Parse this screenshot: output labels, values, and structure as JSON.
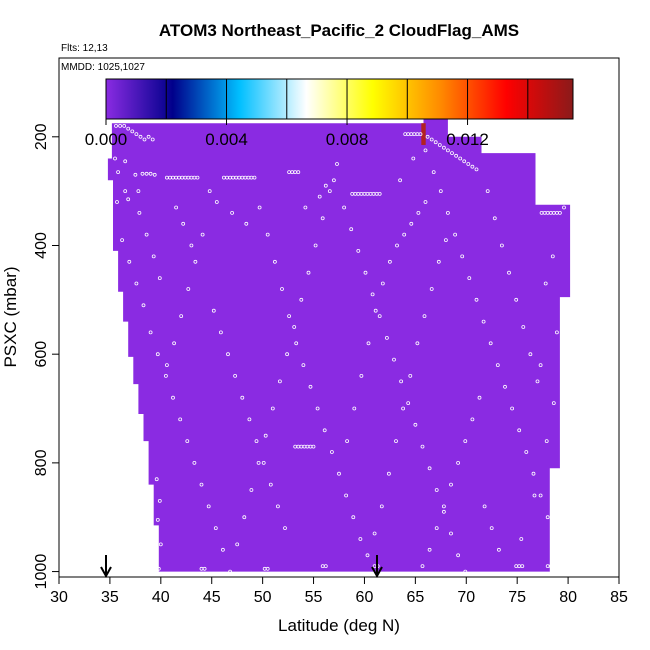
{
  "chart_data": {
    "type": "heatmap",
    "title": "ATOM3 Northeast_Pacific_2 CloudFlag_AMS",
    "info_lines": [
      "Flts: 12,13",
      "MMDD: 1025,1027"
    ],
    "xlabel": "Latitude (deg N)",
    "ylabel": "PSXC (mbar)",
    "xlim": [
      30,
      85
    ],
    "ylim": [
      1010,
      55
    ],
    "x_ticks": [
      30,
      35,
      40,
      45,
      50,
      55,
      60,
      65,
      70,
      75,
      80,
      85
    ],
    "y_ticks": [
      200,
      400,
      600,
      800,
      1000
    ],
    "colorbar": {
      "range": [
        0,
        0.0155
      ],
      "tick_values": [
        0,
        0.004,
        0.008,
        0.012
      ],
      "tick_labels": [
        "0.000",
        "0.004",
        "0.008",
        "0.012"
      ],
      "stops": [
        "#8a2be2",
        "#00008b",
        "#00bfff",
        "#ffffff",
        "#ffff00",
        "#ff8c00",
        "#ff0000",
        "#8b1a1a"
      ]
    },
    "field_color": "#8a2be2",
    "high_value_column": {
      "x": 65.8,
      "p_top": 175,
      "p_bottom": 215,
      "color": "#b22222"
    },
    "curtain": {
      "top_edge": [
        [
          35.2,
          175
        ],
        [
          65.8,
          175
        ],
        [
          65.8,
          160
        ],
        [
          68.2,
          160
        ],
        [
          68.2,
          200
        ],
        [
          71.5,
          200
        ],
        [
          71.5,
          230
        ],
        [
          76.8,
          230
        ],
        [
          76.8,
          325
        ],
        [
          80.2,
          325
        ]
      ],
      "right_edge": [
        [
          80.2,
          325
        ],
        [
          80.2,
          495
        ],
        [
          79.2,
          495
        ],
        [
          79.2,
          810
        ],
        [
          78.2,
          810
        ],
        [
          78.2,
          1000
        ]
      ],
      "left_edge": [
        [
          35.2,
          175
        ],
        [
          35.2,
          240
        ],
        [
          34.8,
          240
        ],
        [
          34.8,
          280
        ],
        [
          35.3,
          280
        ],
        [
          35.3,
          410
        ],
        [
          35.8,
          410
        ],
        [
          35.8,
          485
        ],
        [
          36.3,
          485
        ],
        [
          36.3,
          540
        ],
        [
          36.8,
          540
        ],
        [
          36.8,
          605
        ],
        [
          37.3,
          605
        ],
        [
          37.3,
          655
        ],
        [
          37.8,
          655
        ],
        [
          37.8,
          710
        ],
        [
          38.3,
          710
        ],
        [
          38.3,
          760
        ],
        [
          38.8,
          760
        ],
        [
          38.8,
          840
        ],
        [
          39.3,
          840
        ],
        [
          39.3,
          915
        ],
        [
          39.8,
          915
        ],
        [
          39.8,
          1000
        ]
      ],
      "bottom": 1000
    },
    "sample_points": [
      [
        35.6,
        180
      ],
      [
        36.0,
        180
      ],
      [
        36.4,
        180
      ],
      [
        36.8,
        185
      ],
      [
        37.2,
        190
      ],
      [
        37.6,
        195
      ],
      [
        38.0,
        200
      ],
      [
        38.4,
        205
      ],
      [
        38.8,
        200
      ],
      [
        39.2,
        205
      ],
      [
        35.5,
        240
      ],
      [
        36.5,
        245
      ],
      [
        35.8,
        265
      ],
      [
        37.5,
        270
      ],
      [
        38.2,
        268
      ],
      [
        38.6,
        268
      ],
      [
        39.0,
        268
      ],
      [
        39.4,
        270
      ],
      [
        40.6,
        275
      ],
      [
        40.9,
        275
      ],
      [
        41.2,
        275
      ],
      [
        41.5,
        275
      ],
      [
        41.8,
        275
      ],
      [
        42.1,
        275
      ],
      [
        42.4,
        275
      ],
      [
        42.7,
        275
      ],
      [
        43.0,
        275
      ],
      [
        43.3,
        275
      ],
      [
        43.6,
        275
      ],
      [
        46.2,
        275
      ],
      [
        46.5,
        275
      ],
      [
        46.8,
        275
      ],
      [
        47.1,
        275
      ],
      [
        47.4,
        275
      ],
      [
        47.7,
        275
      ],
      [
        48.0,
        275
      ],
      [
        48.3,
        275
      ],
      [
        48.6,
        275
      ],
      [
        48.9,
        275
      ],
      [
        49.2,
        275
      ],
      [
        35.7,
        320
      ],
      [
        36.8,
        315
      ],
      [
        37.9,
        340
      ],
      [
        38.6,
        380
      ],
      [
        39.3,
        420
      ],
      [
        39.9,
        460
      ],
      [
        36.2,
        390
      ],
      [
        36.9,
        430
      ],
      [
        37.6,
        470
      ],
      [
        38.3,
        510
      ],
      [
        39.0,
        560
      ],
      [
        39.7,
        600
      ],
      [
        40.5,
        640
      ],
      [
        41.2,
        680
      ],
      [
        41.9,
        720
      ],
      [
        42.6,
        760
      ],
      [
        43.3,
        800
      ],
      [
        44.0,
        840
      ],
      [
        44.7,
        880
      ],
      [
        45.4,
        920
      ],
      [
        46.1,
        960
      ],
      [
        46.8,
        1000
      ],
      [
        47.5,
        950
      ],
      [
        48.2,
        900
      ],
      [
        48.9,
        850
      ],
      [
        49.6,
        800
      ],
      [
        50.3,
        750
      ],
      [
        51.0,
        700
      ],
      [
        51.7,
        650
      ],
      [
        52.4,
        600
      ],
      [
        53.1,
        550
      ],
      [
        53.8,
        500
      ],
      [
        54.5,
        450
      ],
      [
        55.2,
        400
      ],
      [
        55.9,
        350
      ],
      [
        56.6,
        300
      ],
      [
        57.3,
        250
      ],
      [
        52.6,
        265
      ],
      [
        52.9,
        265
      ],
      [
        53.2,
        265
      ],
      [
        53.5,
        265
      ],
      [
        56.2,
        290
      ],
      [
        58.0,
        330
      ],
      [
        58.7,
        370
      ],
      [
        59.4,
        410
      ],
      [
        60.1,
        450
      ],
      [
        60.8,
        490
      ],
      [
        61.5,
        530
      ],
      [
        62.2,
        570
      ],
      [
        62.9,
        610
      ],
      [
        63.6,
        650
      ],
      [
        64.3,
        690
      ],
      [
        65.0,
        730
      ],
      [
        65.7,
        770
      ],
      [
        66.4,
        810
      ],
      [
        67.1,
        850
      ],
      [
        67.8,
        890
      ],
      [
        68.5,
        930
      ],
      [
        69.2,
        970
      ],
      [
        69.9,
        1000
      ],
      [
        58.8,
        305
      ],
      [
        59.1,
        305
      ],
      [
        59.4,
        305
      ],
      [
        59.7,
        305
      ],
      [
        60.0,
        305
      ],
      [
        60.3,
        305
      ],
      [
        60.6,
        305
      ],
      [
        60.9,
        305
      ],
      [
        61.2,
        305
      ],
      [
        61.5,
        305
      ],
      [
        64.0,
        195
      ],
      [
        64.3,
        195
      ],
      [
        64.6,
        195
      ],
      [
        64.9,
        195
      ],
      [
        65.2,
        195
      ],
      [
        65.5,
        195
      ],
      [
        66.2,
        200
      ],
      [
        66.6,
        205
      ],
      [
        67.0,
        210
      ],
      [
        67.4,
        215
      ],
      [
        67.8,
        220
      ],
      [
        68.2,
        225
      ],
      [
        68.6,
        230
      ],
      [
        69.0,
        235
      ],
      [
        69.4,
        240
      ],
      [
        69.8,
        245
      ],
      [
        70.2,
        250
      ],
      [
        70.6,
        255
      ],
      [
        71.0,
        260
      ],
      [
        66.8,
        265
      ],
      [
        67.5,
        300
      ],
      [
        68.2,
        340
      ],
      [
        68.9,
        380
      ],
      [
        69.6,
        420
      ],
      [
        70.3,
        460
      ],
      [
        71.0,
        500
      ],
      [
        71.7,
        540
      ],
      [
        72.4,
        580
      ],
      [
        73.1,
        620
      ],
      [
        73.8,
        660
      ],
      [
        74.5,
        700
      ],
      [
        75.2,
        740
      ],
      [
        75.9,
        780
      ],
      [
        76.6,
        820
      ],
      [
        77.3,
        860
      ],
      [
        78.0,
        900
      ],
      [
        77.4,
        340
      ],
      [
        77.7,
        340
      ],
      [
        78.0,
        340
      ],
      [
        78.3,
        340
      ],
      [
        78.6,
        340
      ],
      [
        78.9,
        340
      ],
      [
        79.2,
        340
      ],
      [
        79.6,
        330
      ],
      [
        78.5,
        420
      ],
      [
        77.8,
        470
      ],
      [
        78.9,
        560
      ],
      [
        77.3,
        620
      ],
      [
        78.6,
        690
      ],
      [
        77.9,
        760
      ],
      [
        76.7,
        860
      ],
      [
        75.4,
        940
      ],
      [
        74.9,
        990
      ],
      [
        75.2,
        990
      ],
      [
        75.5,
        990
      ],
      [
        78.0,
        990
      ],
      [
        78.3,
        990
      ],
      [
        39.6,
        830
      ],
      [
        39.9,
        870
      ],
      [
        39.7,
        905
      ],
      [
        40.0,
        950
      ],
      [
        39.8,
        995
      ],
      [
        44.0,
        995
      ],
      [
        44.3,
        995
      ],
      [
        50.2,
        995
      ],
      [
        50.5,
        995
      ],
      [
        55.9,
        990
      ],
      [
        56.2,
        990
      ],
      [
        61.0,
        990
      ],
      [
        61.3,
        990
      ],
      [
        53.2,
        770
      ],
      [
        53.5,
        770
      ],
      [
        53.8,
        770
      ],
      [
        54.1,
        770
      ],
      [
        54.4,
        770
      ],
      [
        54.7,
        770
      ],
      [
        55.0,
        770
      ],
      [
        58.3,
        760
      ],
      [
        59.0,
        700
      ],
      [
        59.7,
        640
      ],
      [
        60.4,
        580
      ],
      [
        61.1,
        520
      ],
      [
        61.8,
        470
      ],
      [
        62.5,
        430
      ],
      [
        63.2,
        400
      ],
      [
        63.9,
        380
      ],
      [
        64.6,
        360
      ],
      [
        65.3,
        340
      ],
      [
        66.0,
        320
      ],
      [
        45.2,
        520
      ],
      [
        45.9,
        560
      ],
      [
        46.6,
        600
      ],
      [
        47.3,
        640
      ],
      [
        48.0,
        680
      ],
      [
        48.7,
        720
      ],
      [
        49.4,
        760
      ],
      [
        50.1,
        800
      ],
      [
        50.8,
        840
      ],
      [
        51.5,
        880
      ],
      [
        52.2,
        920
      ],
      [
        44.1,
        380
      ],
      [
        43.4,
        430
      ],
      [
        42.7,
        480
      ],
      [
        42.0,
        530
      ],
      [
        41.3,
        580
      ],
      [
        40.6,
        620
      ],
      [
        41.5,
        330
      ],
      [
        42.2,
        360
      ],
      [
        43.0,
        400
      ],
      [
        49.7,
        330
      ],
      [
        50.5,
        380
      ],
      [
        51.2,
        430
      ],
      [
        51.9,
        480
      ],
      [
        52.6,
        530
      ],
      [
        53.3,
        580
      ],
      [
        54.0,
        620
      ],
      [
        54.7,
        660
      ],
      [
        55.4,
        700
      ],
      [
        56.1,
        740
      ],
      [
        56.8,
        780
      ],
      [
        57.5,
        820
      ],
      [
        58.2,
        860
      ],
      [
        58.9,
        900
      ],
      [
        59.6,
        940
      ],
      [
        60.3,
        970
      ],
      [
        61.0,
        930
      ],
      [
        61.7,
        880
      ],
      [
        62.4,
        820
      ],
      [
        63.1,
        760
      ],
      [
        63.8,
        700
      ],
      [
        64.5,
        640
      ],
      [
        65.2,
        580
      ],
      [
        65.9,
        530
      ],
      [
        66.6,
        480
      ],
      [
        67.3,
        430
      ],
      [
        68.0,
        390
      ],
      [
        72.1,
        300
      ],
      [
        72.8,
        350
      ],
      [
        73.5,
        400
      ],
      [
        74.2,
        450
      ],
      [
        74.9,
        500
      ],
      [
        75.6,
        550
      ],
      [
        76.3,
        600
      ],
      [
        77.0,
        650
      ],
      [
        71.3,
        680
      ],
      [
        70.6,
        720
      ],
      [
        69.9,
        760
      ],
      [
        69.2,
        800
      ],
      [
        68.5,
        840
      ],
      [
        67.8,
        880
      ],
      [
        67.1,
        920
      ],
      [
        66.4,
        960
      ],
      [
        65.7,
        990
      ],
      [
        71.8,
        880
      ],
      [
        72.5,
        920
      ],
      [
        73.2,
        960
      ],
      [
        36.5,
        300
      ],
      [
        37.8,
        300
      ],
      [
        44.8,
        300
      ],
      [
        45.5,
        320
      ],
      [
        47.0,
        340
      ],
      [
        48.4,
        360
      ],
      [
        54.2,
        330
      ],
      [
        55.6,
        310
      ],
      [
        57.0,
        280
      ],
      [
        63.5,
        280
      ],
      [
        64.8,
        240
      ],
      [
        66.0,
        225
      ]
    ]
  }
}
